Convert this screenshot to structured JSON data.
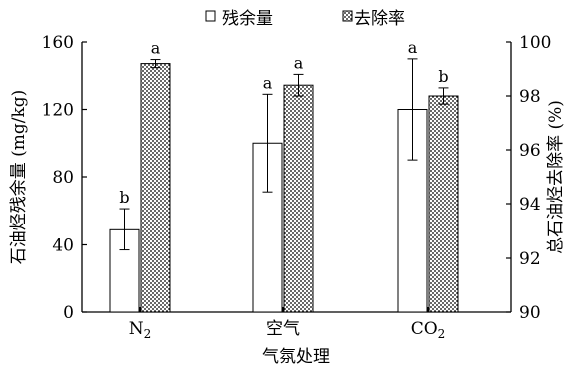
{
  "chart_data": {
    "type": "bar",
    "categories": [
      "N2",
      "空气",
      "CO2"
    ],
    "xlabel": "气氛处理",
    "ylabel_left": "石油烃残余量 (mg/kg)",
    "ylabel_right": "总石油烃去除率 (%)",
    "ylim_left": [
      0,
      160
    ],
    "ylim_right": [
      90,
      100
    ],
    "yticks_left": [
      "0",
      "40",
      "80",
      "120",
      "160"
    ],
    "yticks_right": [
      "90",
      "92",
      "94",
      "96",
      "98",
      "100"
    ],
    "grid": false,
    "legend_position": "top",
    "series": [
      {
        "name": "残余量",
        "axis": "left",
        "pattern": "white",
        "values": [
          49,
          100,
          120
        ],
        "errors": [
          12,
          29,
          30
        ],
        "labels": [
          "b",
          "a",
          "a"
        ]
      },
      {
        "name": "去除率",
        "axis": "right",
        "pattern": "dotted",
        "values": [
          99.2,
          98.4,
          98.0
        ],
        "errors": [
          0.15,
          0.4,
          0.3
        ],
        "labels": [
          "a",
          "a",
          "b"
        ]
      }
    ]
  }
}
